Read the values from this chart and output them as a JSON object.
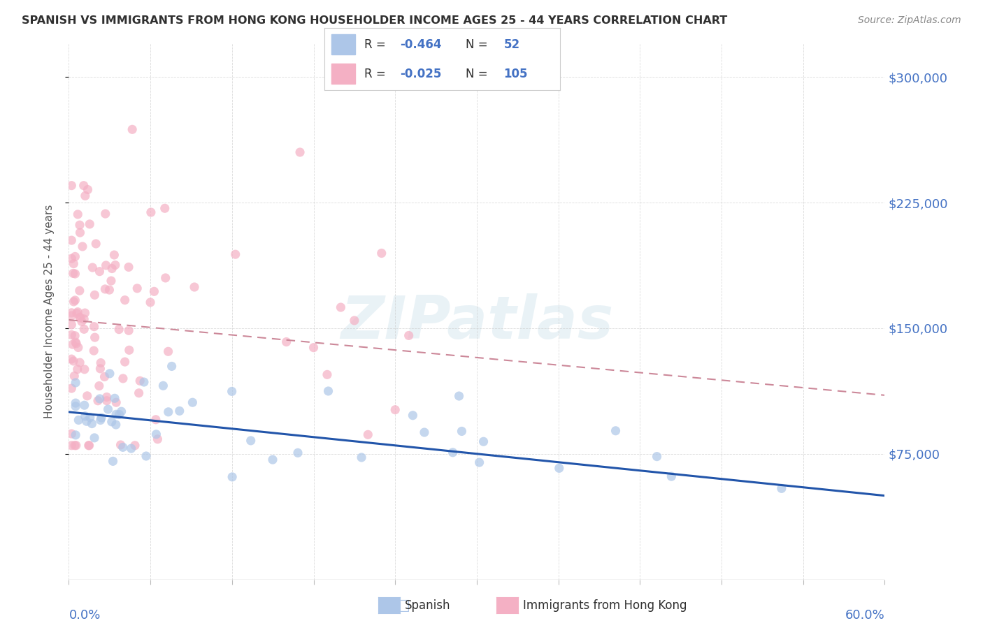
{
  "title": "SPANISH VS IMMIGRANTS FROM HONG KONG HOUSEHOLDER INCOME AGES 25 - 44 YEARS CORRELATION CHART",
  "source": "Source: ZipAtlas.com",
  "ylabel": "Householder Income Ages 25 - 44 years",
  "xlim": [
    0.0,
    60.0
  ],
  "ylim": [
    0,
    320000
  ],
  "ytick_vals": [
    75000,
    150000,
    225000,
    300000
  ],
  "ytick_labels": [
    "$75,000",
    "$150,000",
    "$225,000",
    "$300,000"
  ],
  "watermark": "ZIPatlas",
  "spanish_R": "-0.464",
  "spanish_N": "52",
  "hk_R": "-0.025",
  "hk_N": "105",
  "spanish_color": "#adc6e8",
  "hk_color": "#f4b0c4",
  "spanish_line_color": "#2255aa",
  "hk_line_color": "#cc8899",
  "background_color": "#ffffff",
  "grid_color": "#cccccc",
  "title_color": "#303030",
  "source_color": "#888888",
  "axis_label_color": "#555555",
  "tick_label_color": "#4472c4"
}
